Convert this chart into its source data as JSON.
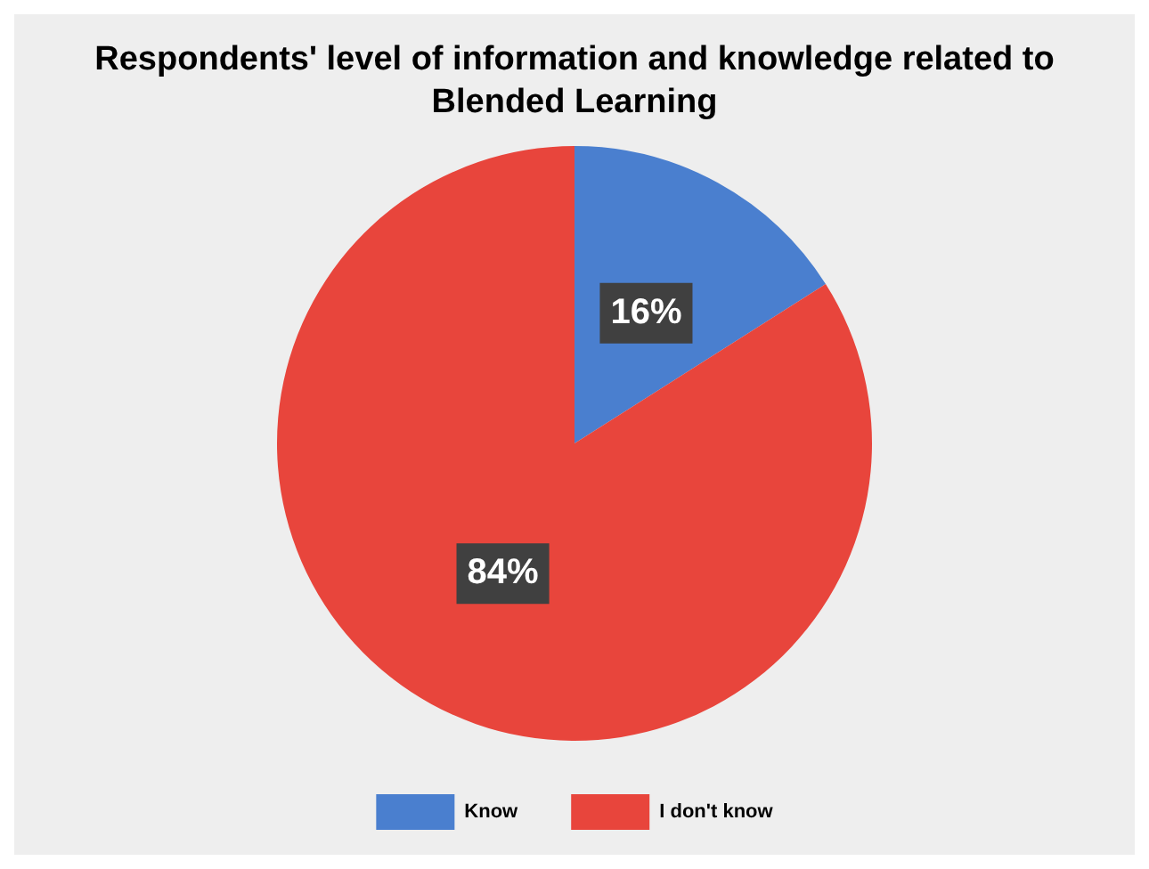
{
  "chart_data": {
    "type": "pie",
    "title": "Respondents' level of information and knowledge related to Blended Learning",
    "categories": [
      "Know",
      "I don't know"
    ],
    "values": [
      16,
      84
    ],
    "colors": [
      "#4a7fcf",
      "#e8453c"
    ],
    "value_labels": [
      "16%",
      "84%"
    ],
    "legend": "bottom"
  }
}
